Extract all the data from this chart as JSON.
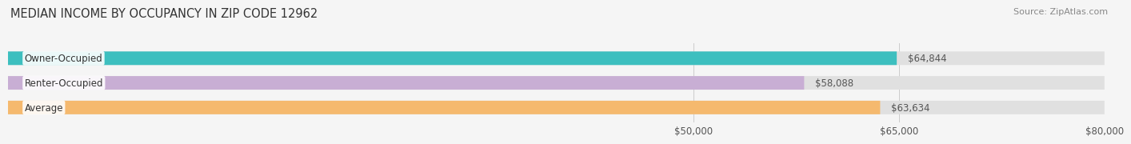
{
  "title": "MEDIAN INCOME BY OCCUPANCY IN ZIP CODE 12962",
  "source": "Source: ZipAtlas.com",
  "categories": [
    "Owner-Occupied",
    "Renter-Occupied",
    "Average"
  ],
  "values": [
    64844,
    58088,
    63634
  ],
  "bar_colors": [
    "#3dbfbf",
    "#c8aed4",
    "#f5b96e"
  ],
  "bar_bg_color": "#e0e0e0",
  "value_labels": [
    "$64,844",
    "$58,088",
    "$63,634"
  ],
  "x_min": 0,
  "x_max": 80000,
  "x_ticks": [
    50000,
    65000,
    80000
  ],
  "x_tick_labels": [
    "$50,000",
    "$65,000",
    "$80,000"
  ],
  "title_fontsize": 10.5,
  "source_fontsize": 8,
  "label_fontsize": 8.5,
  "tick_fontsize": 8.5,
  "background_color": "#f5f5f5",
  "bar_height": 0.55,
  "bar_label_color": "#555555"
}
